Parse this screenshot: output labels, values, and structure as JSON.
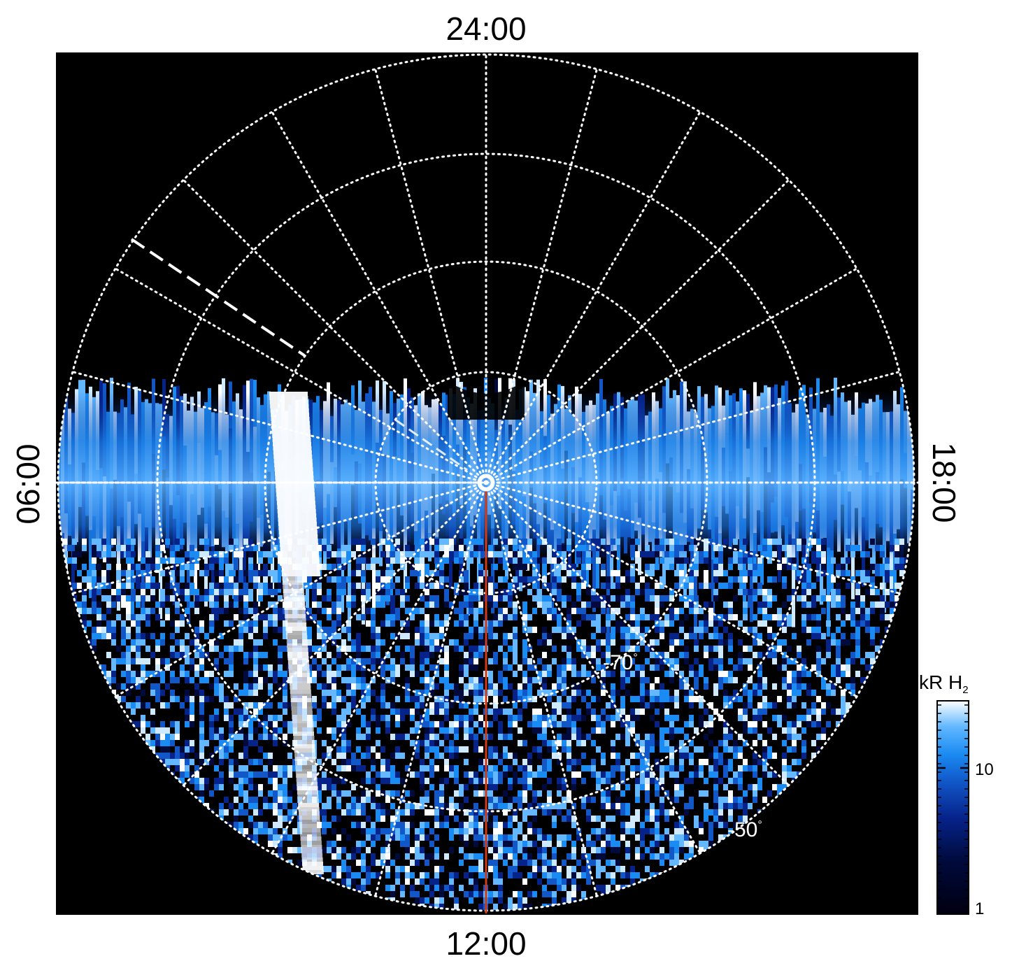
{
  "image": {
    "kind": "polar projection auroral emission map",
    "background": "#000000",
    "grid_color": "#ffffff",
    "meridian_line_color": "#d23a14",
    "emission_colors": [
      "#000010",
      "#000a3c",
      "#06238a",
      "#1157c8",
      "#1a8bf2",
      "#63b8ff",
      "#cfe9ff",
      "#ffffff"
    ]
  },
  "local_time_labels": {
    "top": "24:00",
    "bottom": "12:00",
    "left": "06:00",
    "right": "18:00"
  },
  "latitude_labels": {
    "inner": "-70",
    "outer": "-50",
    "degree_symbol": "°"
  },
  "colorbar": {
    "title_main": "kR H",
    "title_sub": "2",
    "ticks": [
      {
        "label": "10",
        "value": 10
      },
      {
        "label": "1",
        "value": 1
      }
    ],
    "range": [
      1,
      30
    ],
    "scale": "log"
  },
  "icons": {
    "pole_marker": "circle-dot-icon"
  }
}
